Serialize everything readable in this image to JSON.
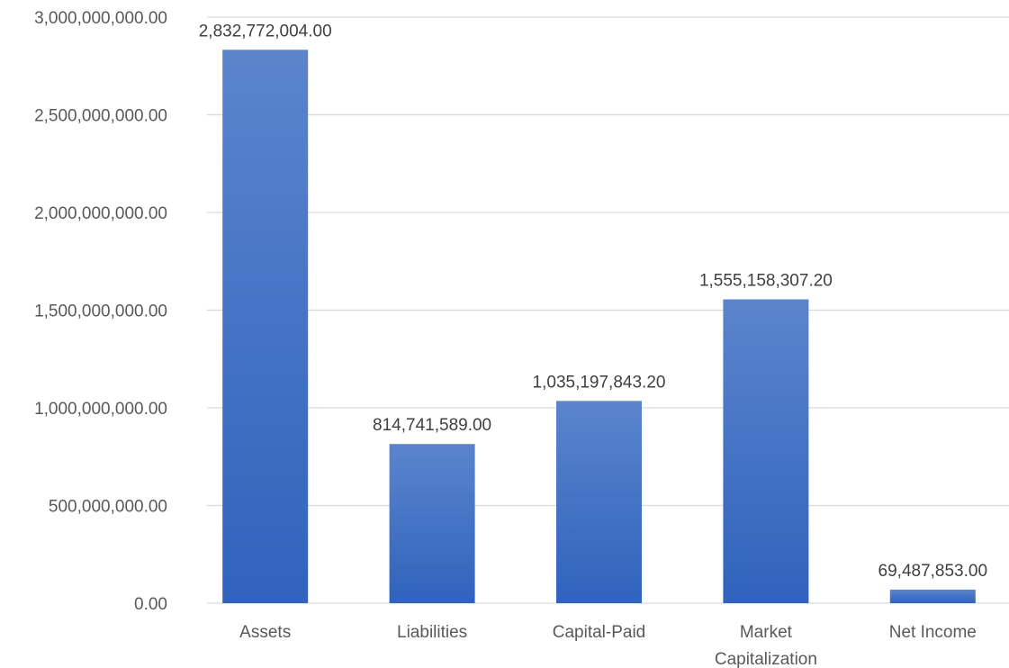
{
  "chart_data": {
    "type": "bar",
    "categories": [
      "Assets",
      "Liabilities",
      "Capital-Paid",
      "Market Capitalization",
      "Net Income"
    ],
    "category_lines": [
      [
        "Assets"
      ],
      [
        "Liabilities"
      ],
      [
        "Capital-Paid"
      ],
      [
        "Market",
        "Capitalization"
      ],
      [
        "Net Income"
      ]
    ],
    "values": [
      2832772004.0,
      814741589.0,
      1035197843.2,
      1555158307.2,
      69487853.0
    ],
    "value_labels": [
      "2,832,772,004.00",
      "814,741,589.00",
      "1,035,197,843.20",
      "1,555,158,307.20",
      "69,487,853.00"
    ],
    "y_ticks": [
      0,
      500000000,
      1000000000,
      1500000000,
      2000000000,
      2500000000,
      3000000000
    ],
    "y_tick_labels": [
      "0.00",
      "500,000,000.00",
      "1,000,000,000.00",
      "1,500,000,000.00",
      "2,000,000,000.00",
      "2,500,000,000.00",
      "3,000,000,000.00"
    ],
    "ylim": [
      0,
      3000000000
    ],
    "grid": true,
    "bar_color_top": "#5b84cc",
    "bar_color_bottom": "#2f63bd",
    "legend": "none"
  }
}
